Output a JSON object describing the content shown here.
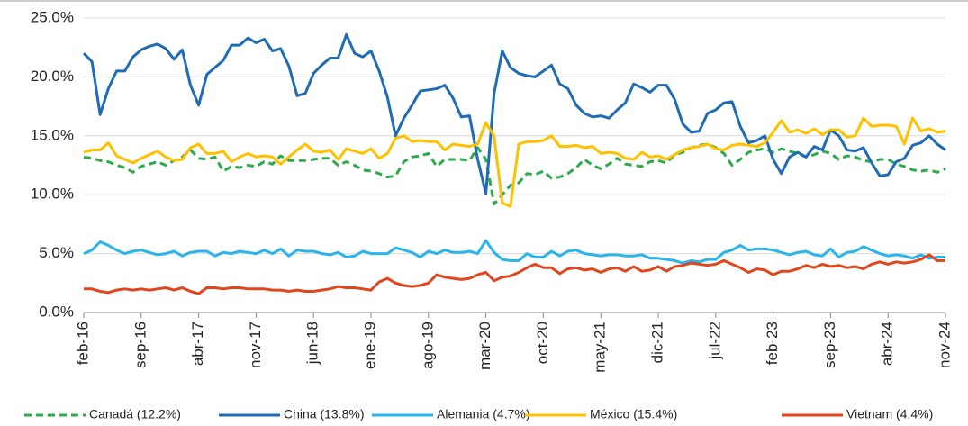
{
  "chart_data": {
    "type": "line",
    "categories": [
      "feb-16",
      null,
      null,
      null,
      null,
      null,
      null,
      "sep-16",
      null,
      null,
      null,
      null,
      null,
      null,
      "abr-17",
      null,
      null,
      null,
      null,
      null,
      null,
      "nov-17",
      null,
      null,
      null,
      null,
      null,
      null,
      "jun-18",
      null,
      null,
      null,
      null,
      null,
      null,
      "ene-19",
      null,
      null,
      null,
      null,
      null,
      null,
      "ago-19",
      null,
      null,
      null,
      null,
      null,
      null,
      "mar-20",
      null,
      null,
      null,
      null,
      null,
      null,
      "oct-20",
      null,
      null,
      null,
      null,
      null,
      null,
      "may-21",
      null,
      null,
      null,
      null,
      null,
      null,
      "dic-21",
      null,
      null,
      null,
      null,
      null,
      null,
      "jul-22",
      null,
      null,
      null,
      null,
      null,
      null,
      "feb-23",
      null,
      null,
      null,
      null,
      null,
      null,
      "sep-23",
      null,
      null,
      null,
      null,
      null,
      null,
      "abr-24",
      null,
      null,
      null,
      null,
      null,
      null,
      "nov-24"
    ],
    "series": [
      {
        "name": "Canadá (12.2%)",
        "color": "#2eaa4a",
        "dashed": true,
        "values": [
          13.2,
          13.1,
          12.9,
          12.8,
          12.5,
          12.3,
          11.9,
          12.4,
          12.6,
          12.8,
          12.5,
          12.9,
          13.2,
          13.8,
          13.1,
          13.0,
          13.2,
          12.0,
          12.4,
          12.3,
          12.5,
          12.4,
          12.8,
          12.6,
          13.3,
          12.9,
          12.9,
          12.9,
          13.0,
          13.1,
          13.1,
          12.5,
          12.8,
          12.5,
          12.1,
          12.0,
          11.8,
          11.5,
          11.6,
          12.8,
          13.2,
          13.3,
          13.5,
          12.4,
          13.0,
          13.0,
          13.0,
          12.9,
          14.0,
          13.0,
          9.2,
          10.0,
          10.8,
          11.0,
          11.8,
          11.7,
          12.0,
          11.4,
          11.5,
          11.8,
          12.3,
          13.0,
          12.5,
          12.2,
          12.6,
          13.1,
          12.6,
          12.5,
          12.4,
          12.8,
          12.9,
          12.7,
          13.4,
          13.6,
          14.0,
          14.2,
          14.3,
          14.0,
          13.5,
          12.5,
          13.0,
          13.6,
          13.8,
          13.9,
          13.6,
          13.9,
          13.7,
          13.5,
          13.2,
          13.4,
          13.7,
          13.5,
          13.0,
          13.3,
          13.2,
          12.9,
          12.8,
          13.0,
          13.0,
          12.6,
          12.4,
          12.1,
          12.0,
          12.1,
          11.9,
          12.2
        ]
      },
      {
        "name": "China (13.8%)",
        "color": "#1f6bb5",
        "values": [
          22.0,
          21.3,
          16.8,
          19.0,
          20.5,
          20.5,
          21.7,
          22.3,
          22.6,
          22.8,
          22.4,
          21.5,
          22.3,
          19.3,
          17.6,
          20.2,
          20.8,
          21.4,
          22.7,
          22.7,
          23.3,
          22.9,
          23.2,
          22.2,
          22.4,
          20.9,
          18.4,
          18.6,
          20.3,
          21.0,
          21.6,
          21.6,
          23.6,
          22.0,
          21.7,
          22.2,
          20.5,
          18.3,
          15.0,
          16.5,
          17.6,
          18.8,
          18.9,
          19.0,
          19.3,
          18.2,
          16.6,
          16.7,
          13.0,
          10.1,
          18.6,
          22.2,
          20.8,
          20.3,
          20.1,
          20.0,
          20.5,
          21.0,
          19.4,
          19.0,
          17.6,
          16.9,
          16.6,
          16.7,
          16.5,
          17.2,
          17.8,
          19.4,
          19.1,
          18.7,
          19.3,
          19.3,
          18.1,
          16.0,
          15.3,
          15.4,
          16.9,
          17.2,
          17.8,
          17.9,
          15.8,
          14.4,
          14.6,
          15.0,
          13.0,
          11.8,
          13.2,
          13.6,
          13.2,
          14.1,
          13.8,
          15.5,
          15.0,
          13.8,
          13.7,
          14.0,
          12.7,
          11.6,
          11.7,
          12.8,
          13.1,
          14.2,
          14.4,
          15.0,
          14.3,
          13.8
        ]
      },
      {
        "name": "Alemania (4.7%)",
        "color": "#2ab4ea",
        "values": [
          5.0,
          5.3,
          6.0,
          5.7,
          5.3,
          5.0,
          5.2,
          5.3,
          5.1,
          4.9,
          5.0,
          5.2,
          4.8,
          5.1,
          5.2,
          5.2,
          4.8,
          5.1,
          5.0,
          5.2,
          5.1,
          5.0,
          5.3,
          5.0,
          5.4,
          4.8,
          5.3,
          5.2,
          5.2,
          5.0,
          4.9,
          5.1,
          4.7,
          4.8,
          5.2,
          5.0,
          5.0,
          5.0,
          5.5,
          5.3,
          5.1,
          4.7,
          5.2,
          5.0,
          5.3,
          5.1,
          5.1,
          5.2,
          5.0,
          6.1,
          5.1,
          4.5,
          4.4,
          4.4,
          5.0,
          4.7,
          4.7,
          5.2,
          4.8,
          5.2,
          5.3,
          5.0,
          4.9,
          4.8,
          4.9,
          4.9,
          4.8,
          4.8,
          4.9,
          4.6,
          4.6,
          4.5,
          4.4,
          4.2,
          4.4,
          4.3,
          4.5,
          4.5,
          5.1,
          5.3,
          5.7,
          5.3,
          5.4,
          5.4,
          5.3,
          5.1,
          4.9,
          5.1,
          5.2,
          4.9,
          4.8,
          5.4,
          4.7,
          5.1,
          5.2,
          5.6,
          5.3,
          5.0,
          4.8,
          4.9,
          4.8,
          4.6,
          4.9,
          4.6,
          4.7,
          4.7
        ]
      },
      {
        "name": "México (15.4%)",
        "color": "#ffc000",
        "values": [
          13.6,
          13.8,
          13.8,
          14.4,
          13.3,
          13.0,
          12.7,
          13.1,
          13.4,
          13.7,
          13.2,
          12.9,
          13.0,
          14.0,
          14.3,
          13.5,
          13.5,
          13.7,
          12.8,
          13.2,
          13.5,
          13.2,
          13.3,
          13.2,
          12.6,
          13.2,
          13.8,
          14.3,
          13.7,
          13.6,
          13.8,
          13.0,
          13.9,
          13.7,
          13.5,
          13.9,
          13.1,
          13.5,
          14.8,
          15.0,
          14.5,
          14.6,
          14.5,
          14.5,
          13.8,
          14.3,
          14.2,
          14.1,
          14.3,
          16.1,
          15.0,
          9.3,
          9.0,
          14.3,
          14.5,
          14.5,
          14.6,
          15.0,
          14.1,
          14.1,
          14.2,
          14.0,
          14.1,
          13.5,
          13.6,
          13.5,
          13.1,
          13.0,
          13.6,
          13.2,
          13.3,
          13.0,
          13.4,
          13.8,
          14.0,
          14.1,
          14.3,
          13.9,
          13.8,
          14.2,
          14.3,
          14.2,
          14.1,
          14.4,
          15.3,
          16.3,
          15.3,
          15.5,
          15.2,
          15.6,
          15.1,
          15.5,
          15.5,
          14.9,
          15.0,
          16.5,
          15.8,
          15.9,
          15.9,
          15.8,
          14.3,
          16.5,
          15.4,
          15.6,
          15.3,
          15.4
        ]
      },
      {
        "name": "Vietnam (4.4%)",
        "color": "#e0461e",
        "values": [
          2.0,
          2.0,
          1.8,
          1.7,
          1.9,
          2.0,
          1.9,
          2.0,
          1.9,
          2.0,
          2.1,
          1.9,
          2.1,
          1.8,
          1.6,
          2.1,
          2.1,
          2.0,
          2.1,
          2.1,
          2.0,
          2.0,
          2.0,
          1.9,
          1.9,
          1.8,
          1.9,
          1.8,
          1.8,
          1.9,
          2.0,
          2.2,
          2.1,
          2.1,
          2.0,
          1.9,
          2.6,
          2.9,
          2.5,
          2.3,
          2.2,
          2.3,
          2.5,
          3.2,
          3.0,
          2.9,
          2.8,
          2.9,
          3.2,
          3.4,
          2.7,
          3.0,
          3.1,
          3.4,
          3.8,
          4.1,
          3.8,
          3.8,
          3.3,
          3.7,
          3.8,
          3.6,
          3.7,
          3.4,
          3.7,
          3.8,
          3.5,
          3.9,
          3.5,
          3.6,
          3.9,
          3.5,
          3.9,
          4.0,
          4.2,
          4.1,
          4.0,
          4.1,
          4.4,
          4.1,
          3.8,
          3.4,
          3.7,
          3.6,
          3.2,
          3.5,
          3.5,
          3.7,
          4.0,
          3.8,
          4.1,
          3.9,
          4.0,
          3.8,
          3.9,
          3.7,
          4.1,
          4.3,
          4.1,
          4.3,
          4.2,
          4.3,
          4.5,
          4.9,
          4.4,
          4.4
        ]
      }
    ],
    "ylim": [
      0,
      25
    ],
    "yticks": [
      {
        "value": 0,
        "label": "0.0%"
      },
      {
        "value": 5,
        "label": "5.0%"
      },
      {
        "value": 10,
        "label": "10.0%"
      },
      {
        "value": 15,
        "label": "15.0%"
      },
      {
        "value": 20,
        "label": "20.0%"
      },
      {
        "value": 25,
        "label": "25.0%"
      }
    ],
    "grid": true,
    "legend": "bottom"
  }
}
